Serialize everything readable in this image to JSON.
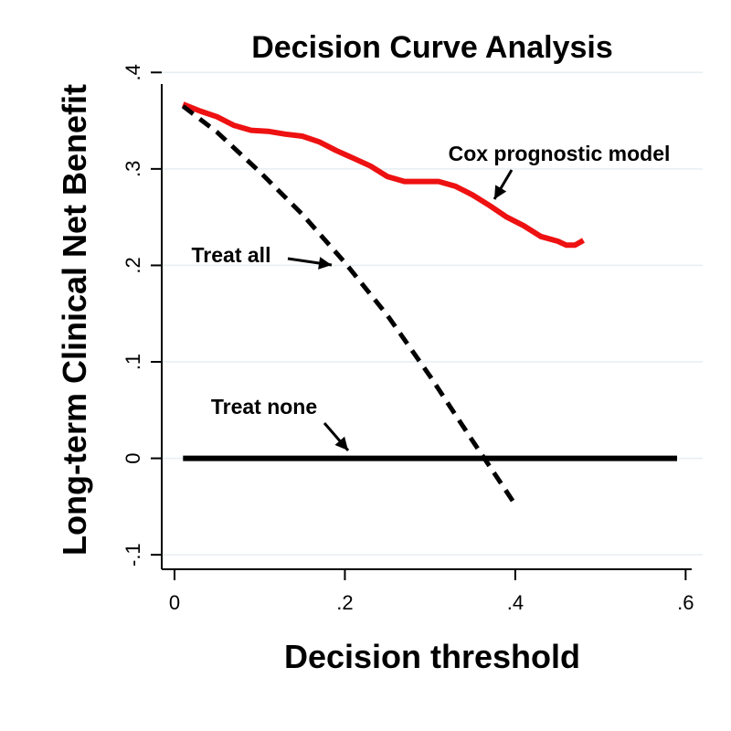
{
  "chart_data": {
    "type": "line",
    "title": "Decision Curve Analysis",
    "xlabel": "Decision threshold",
    "ylabel": "Long-term Clinical Net Benefit",
    "xlim": [
      -0.015,
      0.62
    ],
    "ylim": [
      -0.115,
      0.405
    ],
    "xticks": [
      {
        "value": 0,
        "label": "0"
      },
      {
        "value": 0.2,
        "label": ".2"
      },
      {
        "value": 0.4,
        "label": ".4"
      },
      {
        "value": 0.6,
        "label": ".6"
      }
    ],
    "yticks": [
      {
        "value": -0.1,
        "label": "-.1"
      },
      {
        "value": 0,
        "label": "0"
      },
      {
        "value": 0.1,
        "label": ".1"
      },
      {
        "value": 0.2,
        "label": ".2"
      },
      {
        "value": 0.3,
        "label": ".3"
      },
      {
        "value": 0.4,
        "label": ".4"
      }
    ],
    "grid": "horizontal",
    "series": [
      {
        "name": "Cox prognostic model",
        "color": "#ee1111",
        "style": "solid",
        "x": [
          0.01,
          0.03,
          0.05,
          0.07,
          0.09,
          0.11,
          0.13,
          0.15,
          0.17,
          0.19,
          0.21,
          0.23,
          0.25,
          0.27,
          0.29,
          0.31,
          0.33,
          0.35,
          0.37,
          0.39,
          0.41,
          0.43,
          0.45,
          0.46,
          0.47,
          0.48
        ],
        "values": [
          0.367,
          0.36,
          0.354,
          0.345,
          0.34,
          0.339,
          0.336,
          0.334,
          0.328,
          0.319,
          0.311,
          0.303,
          0.292,
          0.287,
          0.287,
          0.287,
          0.282,
          0.273,
          0.262,
          0.25,
          0.241,
          0.23,
          0.225,
          0.221,
          0.221,
          0.226
        ]
      },
      {
        "name": "Treat all",
        "color": "#000000",
        "style": "dashed",
        "x": [
          0.01,
          0.05,
          0.1,
          0.15,
          0.2,
          0.25,
          0.3,
          0.35,
          0.375,
          0.4
        ],
        "values": [
          0.365,
          0.338,
          0.297,
          0.253,
          0.203,
          0.148,
          0.085,
          0.018,
          -0.015,
          -0.048
        ]
      },
      {
        "name": "Treat none",
        "color": "#000000",
        "style": "solid",
        "x": [
          0.01,
          0.59
        ],
        "values": [
          0,
          0
        ]
      }
    ],
    "annotations": [
      {
        "text": "Cox prognostic model",
        "series": "Cox prognostic model"
      },
      {
        "text": "Treat all",
        "series": "Treat all"
      },
      {
        "text": "Treat none",
        "series": "Treat none"
      }
    ]
  }
}
